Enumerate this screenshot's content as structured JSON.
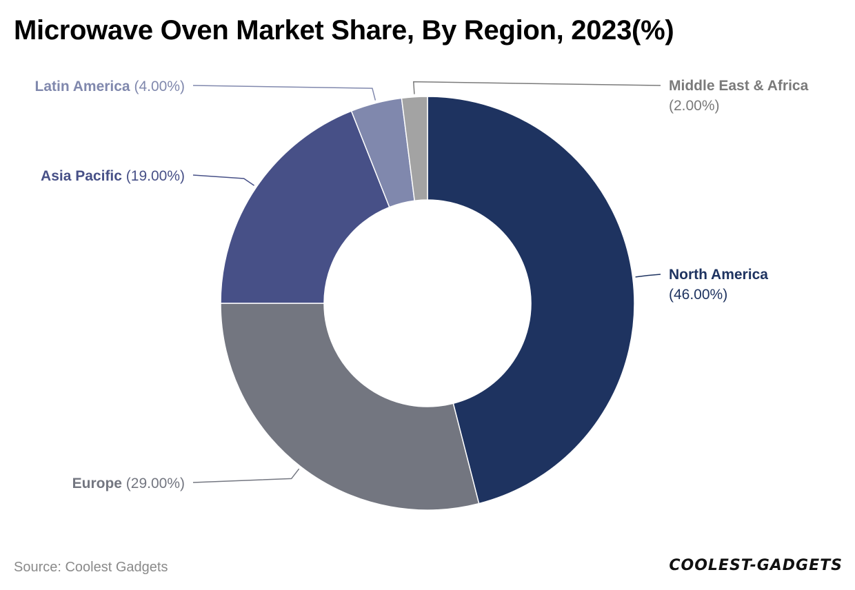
{
  "title": "Microwave Oven Market Share, By Region, 2023(%)",
  "source": "Source: Coolest Gadgets",
  "logo_text": "COOLEST-GADGETS",
  "chart_data": {
    "type": "pie",
    "variant": "donut",
    "title": "Microwave Oven Market Share, By Region, 2023(%)",
    "categories": [
      "North America",
      "Europe",
      "Asia Pacific",
      "Latin America",
      "Middle East & Africa"
    ],
    "values": [
      46.0,
      29.0,
      19.0,
      4.0,
      2.0
    ],
    "value_labels": [
      "(46.00%)",
      "(29.00%)",
      "(19.00%)",
      "(4.00%)",
      "(2.00%)"
    ],
    "colors": [
      "#1e3360",
      "#737680",
      "#475087",
      "#8088ad",
      "#a3a3a3"
    ],
    "label_colors": [
      "#1e3360",
      "#737680",
      "#475087",
      "#8088ad",
      "#7a7a7a"
    ],
    "start_angle": "12 o'clock",
    "direction": "clockwise",
    "legend": "none"
  }
}
